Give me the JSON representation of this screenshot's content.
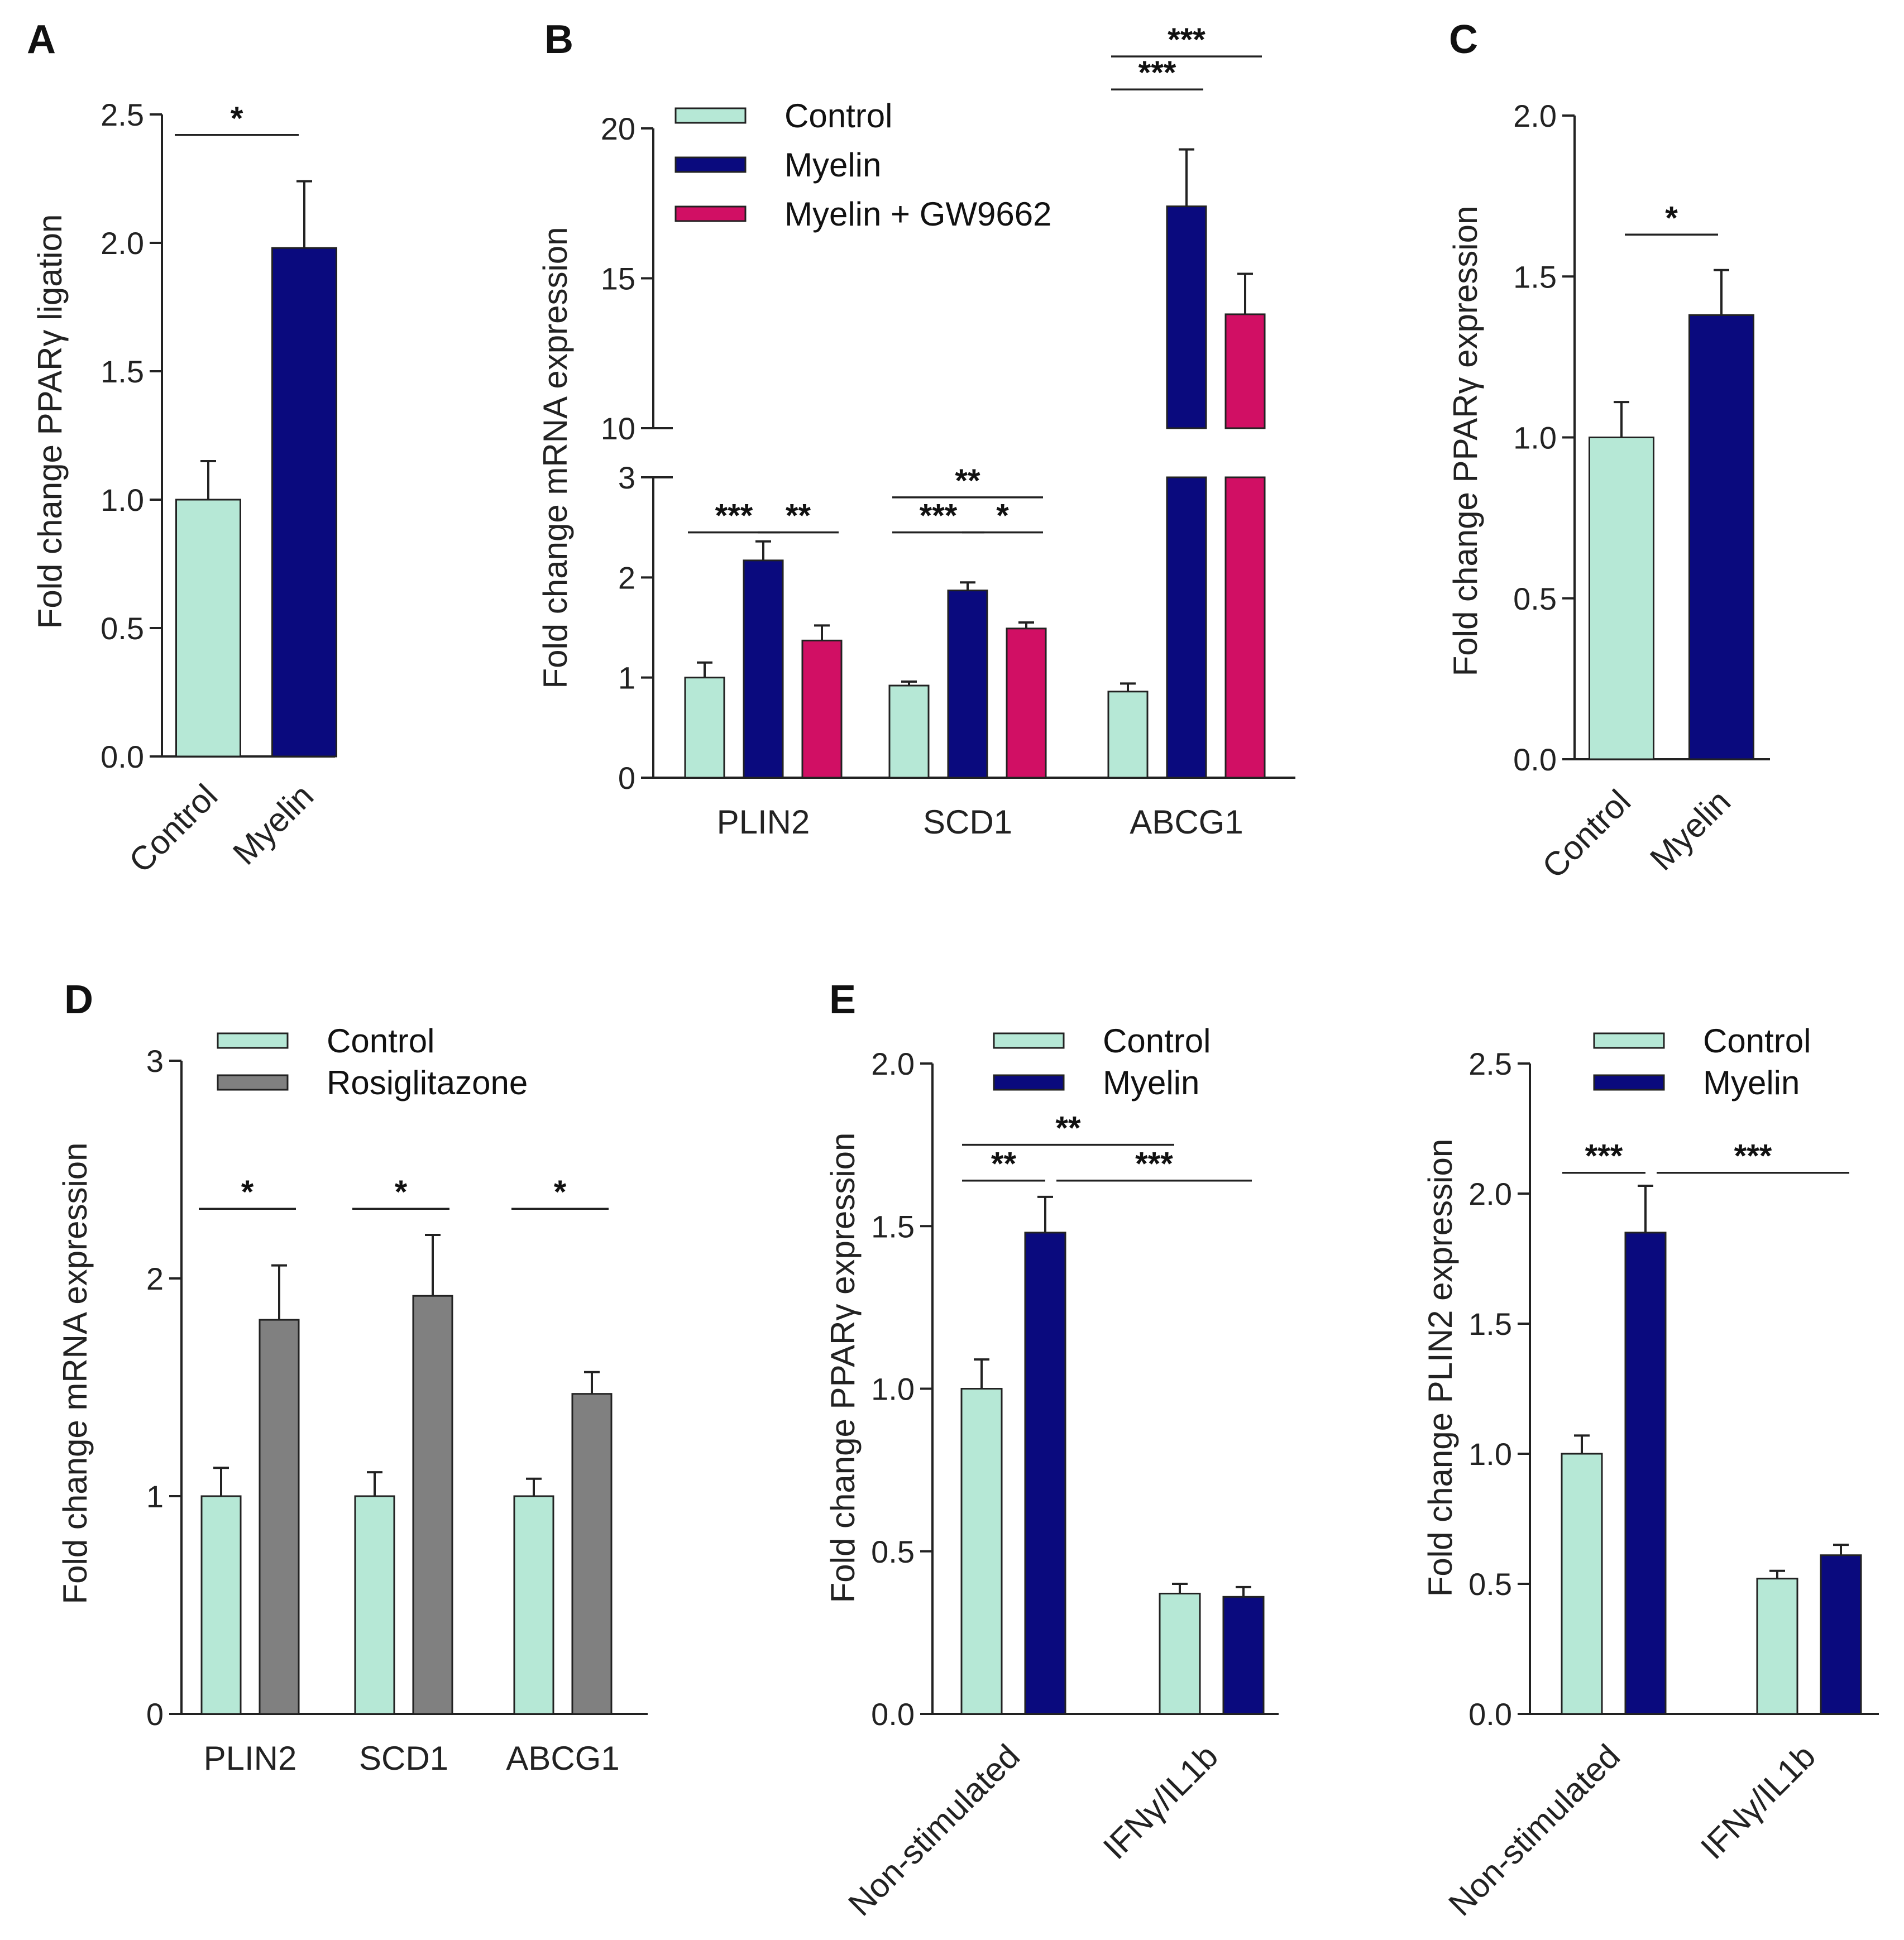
{
  "colors": {
    "control": "#b6e8d6",
    "myelin": "#0a0a7e",
    "gw": "#d10f64",
    "rosi": "#808080"
  },
  "panels": {
    "A": "A",
    "B": "B",
    "C": "C",
    "D": "D",
    "E": "E"
  },
  "chart_data": [
    {
      "id": "A",
      "type": "bar",
      "ylabel": "Fold change PPARγ ligation",
      "categories": [
        "Control",
        "Myelin"
      ],
      "values": [
        1.0,
        1.98
      ],
      "errors": [
        0.15,
        0.26
      ],
      "colors": [
        "control",
        "myelin"
      ],
      "ylim": [
        0,
        2.5
      ],
      "ticks": [
        "0.0",
        "0.5",
        "1.0",
        "1.5",
        "2.0",
        "2.5"
      ],
      "significance": [
        {
          "from": 0,
          "to": 1,
          "label": "*",
          "y": 2.42
        }
      ]
    },
    {
      "id": "B",
      "type": "bar",
      "ylabel": "Fold change mRNA expression",
      "categories": [
        "PLIN2",
        "SCD1",
        "ABCG1"
      ],
      "series": [
        {
          "name": "Control",
          "color": "control",
          "values": [
            1.0,
            0.92,
            0.86
          ],
          "errors": [
            0.15,
            0.04,
            0.08
          ]
        },
        {
          "name": "Myelin",
          "color": "myelin",
          "values": [
            2.17,
            1.87,
            17.4
          ],
          "errors": [
            0.19,
            0.08,
            1.9
          ]
        },
        {
          "name": "Myelin + GW9662",
          "color": "gw",
          "values": [
            1.37,
            1.49,
            13.8
          ],
          "errors": [
            0.15,
            0.06,
            1.35
          ]
        }
      ],
      "broken_axis": {
        "lower": [
          0,
          3
        ],
        "upper": [
          10,
          20
        ]
      },
      "ticks_lower": [
        "0",
        "1",
        "2",
        "3"
      ],
      "ticks_upper": [
        "10",
        "15",
        "20"
      ],
      "significance": [
        {
          "group": 0,
          "from": 0,
          "to": 1,
          "label": "***",
          "y": 2.45
        },
        {
          "group": 0,
          "from": 1,
          "to": 2,
          "label": "**",
          "y": 2.45
        },
        {
          "group": 1,
          "from": 0,
          "to": 1,
          "label": "***",
          "y": 2.45
        },
        {
          "group": 1,
          "from": 1,
          "to": 2,
          "label": "*",
          "y": 2.45
        },
        {
          "group": 1,
          "from": 0,
          "to": 2,
          "label": "**",
          "y": 2.8
        },
        {
          "group": 2,
          "from": 0,
          "to": 1,
          "label": "***",
          "y": 21.3
        },
        {
          "group": 2,
          "from": 0,
          "to": 2,
          "label": "***",
          "y": 22.4
        }
      ]
    },
    {
      "id": "C",
      "type": "bar",
      "ylabel": "Fold change PPARγ expression",
      "categories": [
        "Control",
        "Myelin"
      ],
      "values": [
        1.0,
        1.38
      ],
      "errors": [
        0.11,
        0.14
      ],
      "colors": [
        "control",
        "myelin"
      ],
      "ylim": [
        0,
        2.0
      ],
      "ticks": [
        "0.0",
        "0.5",
        "1.0",
        "1.5",
        "2.0"
      ],
      "significance": [
        {
          "from": 0,
          "to": 1,
          "label": "*",
          "y": 1.63
        }
      ]
    },
    {
      "id": "D",
      "type": "bar",
      "ylabel": "Fold change mRNA expression",
      "categories": [
        "PLIN2",
        "SCD1",
        "ABCG1"
      ],
      "series": [
        {
          "name": "Control",
          "color": "control",
          "values": [
            1.0,
            1.0,
            1.0
          ],
          "errors": [
            0.13,
            0.11,
            0.08
          ]
        },
        {
          "name": "Rosiglitazone",
          "color": "rosi",
          "values": [
            1.81,
            1.92,
            1.47
          ],
          "errors": [
            0.25,
            0.28,
            0.1
          ]
        }
      ],
      "ylim": [
        0,
        3
      ],
      "ticks": [
        "0",
        "1",
        "2",
        "3"
      ],
      "significance": [
        {
          "group": 0,
          "from": 0,
          "to": 1,
          "label": "*",
          "y": 2.32
        },
        {
          "group": 1,
          "from": 0,
          "to": 1,
          "label": "*",
          "y": 2.32
        },
        {
          "group": 2,
          "from": 0,
          "to": 1,
          "label": "*",
          "y": 2.32
        }
      ]
    },
    {
      "id": "E1",
      "type": "bar",
      "ylabel": "Fold change PPARγ expression",
      "categories": [
        "Non-stimulated",
        "IFNγ/IL1b"
      ],
      "series": [
        {
          "name": "Control",
          "color": "control",
          "values": [
            1.0,
            0.37
          ],
          "errors": [
            0.09,
            0.03
          ]
        },
        {
          "name": "Myelin",
          "color": "myelin",
          "values": [
            1.48,
            0.36
          ],
          "errors": [
            0.11,
            0.03
          ]
        }
      ],
      "ylim": [
        0,
        2.0
      ],
      "ticks": [
        "0.0",
        "0.5",
        "1.0",
        "1.5",
        "2.0"
      ],
      "significance": [
        {
          "a": [
            0,
            0
          ],
          "b": [
            0,
            1
          ],
          "label": "**",
          "y": 1.64
        },
        {
          "a": [
            0,
            1
          ],
          "b": [
            1,
            1
          ],
          "label": "***",
          "y": 1.64
        },
        {
          "a": [
            0,
            0
          ],
          "b": [
            1,
            0
          ],
          "label": "**",
          "y": 1.75
        }
      ]
    },
    {
      "id": "E2",
      "type": "bar",
      "ylabel": "Fold change PLIN2 expression",
      "categories": [
        "Non-stimulated",
        "IFNγ/IL1b"
      ],
      "series": [
        {
          "name": "Control",
          "color": "control",
          "values": [
            1.0,
            0.52
          ],
          "errors": [
            0.07,
            0.03
          ]
        },
        {
          "name": "Myelin",
          "color": "myelin",
          "values": [
            1.85,
            0.61
          ],
          "errors": [
            0.18,
            0.04
          ]
        }
      ],
      "ylim": [
        0,
        2.5
      ],
      "ticks": [
        "0.0",
        "0.5",
        "1.0",
        "1.5",
        "2.0",
        "2.5"
      ],
      "significance": [
        {
          "a": [
            0,
            0
          ],
          "b": [
            0,
            1
          ],
          "label": "***",
          "y": 2.08
        },
        {
          "a": [
            0,
            1
          ],
          "b": [
            1,
            1
          ],
          "label": "***",
          "y": 2.08
        }
      ]
    }
  ]
}
